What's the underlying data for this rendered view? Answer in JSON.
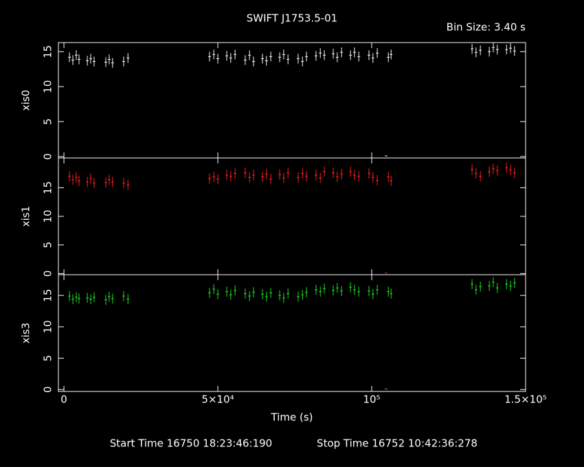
{
  "title": "SWIFT J1753.5-01",
  "annotation": "Bin Size: 3.40 s",
  "start_time": "Start Time 16750 18:23:46:190",
  "stop_time": "Stop Time 16752 10:42:36:278",
  "chart_data": [
    {
      "type": "scatter",
      "ylabel": "xis0",
      "color": "#ffffff",
      "x": [
        1800,
        2900,
        4000,
        4900,
        7600,
        8700,
        9800,
        13600,
        14700,
        15800,
        19400,
        20800,
        47300,
        48700,
        50000,
        52900,
        54200,
        55600,
        58900,
        60300,
        61600,
        64500,
        65800,
        67200,
        70100,
        71400,
        72800,
        76100,
        77500,
        78800,
        81900,
        83300,
        84600,
        87500,
        88800,
        90200,
        93100,
        94400,
        95800,
        99100,
        100400,
        101800,
        105400,
        106300,
        132600,
        133900,
        135300,
        138200,
        139500,
        140800,
        143800,
        145100,
        146400,
        104700
      ],
      "values": [
        14.2,
        13.8,
        14.5,
        13.9,
        13.7,
        14.0,
        13.6,
        13.5,
        13.9,
        13.4,
        13.6,
        14.1,
        14.3,
        14.6,
        14.0,
        14.4,
        14.1,
        14.6,
        13.8,
        14.5,
        13.6,
        14.0,
        13.7,
        14.3,
        14.2,
        14.6,
        13.9,
        14.0,
        13.6,
        14.3,
        14.4,
        14.8,
        14.5,
        14.7,
        14.2,
        14.9,
        14.5,
        14.9,
        14.3,
        14.5,
        14.1,
        14.8,
        14.2,
        14.6,
        15.4,
        14.9,
        15.2,
        15.0,
        15.6,
        15.3,
        15.3,
        15.5,
        15.1,
        0.1
      ],
      "errors": [
        0.7,
        0.7,
        0.7,
        0.7,
        0.7,
        0.7,
        0.7,
        0.7,
        0.7,
        0.7,
        0.7,
        0.7,
        0.7,
        0.7,
        0.7,
        0.7,
        0.7,
        0.7,
        0.7,
        0.7,
        0.7,
        0.7,
        0.7,
        0.7,
        0.7,
        0.7,
        0.7,
        0.7,
        0.7,
        0.7,
        0.7,
        0.7,
        0.7,
        0.7,
        0.7,
        0.7,
        0.7,
        0.7,
        0.7,
        0.7,
        0.7,
        0.7,
        0.7,
        0.7,
        0.7,
        0.7,
        0.7,
        0.7,
        0.7,
        0.7,
        0.7,
        0.7,
        0.7,
        0.0
      ],
      "ylim": [
        -0.2,
        16.3
      ],
      "yticks": [
        0,
        5,
        10,
        15
      ]
    },
    {
      "type": "scatter",
      "ylabel": "xis1",
      "color": "#ff2020",
      "x": [
        1800,
        2900,
        4000,
        4900,
        7600,
        8700,
        9800,
        13600,
        14700,
        15800,
        19400,
        20800,
        47300,
        48700,
        50000,
        52900,
        54200,
        55600,
        58900,
        60300,
        61600,
        64500,
        65800,
        67200,
        70100,
        71400,
        72800,
        76100,
        77500,
        78800,
        81900,
        83300,
        84600,
        87500,
        88800,
        90200,
        93100,
        94400,
        95800,
        99100,
        100400,
        101800,
        105400,
        106300,
        132600,
        133900,
        135300,
        138200,
        139500,
        140800,
        143800,
        145100,
        146400,
        104700
      ],
      "values": [
        17.0,
        16.4,
        16.8,
        16.2,
        16.0,
        16.6,
        15.8,
        15.9,
        16.4,
        16.0,
        15.8,
        15.5,
        16.6,
        16.9,
        16.5,
        17.2,
        17.0,
        17.5,
        17.6,
        16.8,
        17.2,
        16.9,
        17.4,
        16.5,
        17.3,
        16.7,
        17.6,
        16.8,
        17.5,
        17.0,
        17.2,
        16.7,
        17.8,
        17.6,
        16.9,
        17.4,
        17.8,
        17.2,
        17.0,
        17.5,
        16.8,
        16.3,
        16.9,
        16.2,
        18.2,
        17.5,
        17.0,
        17.8,
        18.3,
        18.0,
        18.5,
        18.1,
        17.6,
        0.1
      ],
      "errors": [
        0.9,
        0.9,
        0.9,
        0.9,
        0.9,
        0.9,
        0.9,
        0.9,
        0.9,
        0.9,
        0.9,
        0.9,
        0.9,
        0.9,
        0.9,
        0.9,
        0.9,
        0.9,
        0.9,
        0.9,
        0.9,
        0.9,
        0.9,
        0.9,
        0.9,
        0.9,
        0.9,
        0.9,
        0.9,
        0.9,
        0.9,
        0.9,
        0.9,
        0.9,
        0.9,
        0.9,
        0.9,
        0.9,
        0.9,
        0.9,
        0.9,
        0.9,
        0.9,
        0.9,
        0.9,
        0.9,
        0.9,
        0.9,
        0.9,
        0.9,
        0.9,
        0.9,
        0.9,
        0.0
      ],
      "ylim": [
        -0.2,
        20.2
      ],
      "yticks": [
        0,
        5,
        10,
        15
      ]
    },
    {
      "type": "scatter",
      "ylabel": "xis3",
      "xlabel": "Time (s)",
      "color": "#20e020",
      "x": [
        1800,
        2900,
        4000,
        4900,
        7600,
        8700,
        9800,
        13600,
        14700,
        15800,
        19400,
        20800,
        47300,
        48700,
        50000,
        52900,
        54200,
        55600,
        58900,
        60300,
        61600,
        64500,
        65800,
        67200,
        70100,
        71400,
        72800,
        76100,
        77500,
        78800,
        81900,
        83300,
        84600,
        87500,
        88800,
        90200,
        93100,
        94400,
        95800,
        99100,
        100400,
        101800,
        105400,
        106300,
        132600,
        133900,
        135300,
        138200,
        139500,
        140800,
        143800,
        145100,
        146400,
        104700
      ],
      "values": [
        14.9,
        14.4,
        14.7,
        14.5,
        14.6,
        14.4,
        14.7,
        14.3,
        14.8,
        14.5,
        14.9,
        14.4,
        15.4,
        16.0,
        15.2,
        15.6,
        15.1,
        15.8,
        15.3,
        14.9,
        15.5,
        15.2,
        14.8,
        15.4,
        15.0,
        14.6,
        15.3,
        14.8,
        15.1,
        15.5,
        15.9,
        15.6,
        16.1,
        15.8,
        16.2,
        15.7,
        16.3,
        15.9,
        15.6,
        15.7,
        15.2,
        15.9,
        15.6,
        15.3,
        16.8,
        15.9,
        16.4,
        16.5,
        17.1,
        16.2,
        16.8,
        16.5,
        17.0,
        0.1
      ],
      "errors": [
        0.8,
        0.8,
        0.8,
        0.8,
        0.8,
        0.8,
        0.8,
        0.8,
        0.8,
        0.8,
        0.8,
        0.8,
        0.8,
        0.8,
        0.8,
        0.8,
        0.8,
        0.8,
        0.8,
        0.8,
        0.8,
        0.8,
        0.8,
        0.8,
        0.8,
        0.8,
        0.8,
        0.8,
        0.8,
        0.8,
        0.8,
        0.8,
        0.8,
        0.8,
        0.8,
        0.8,
        0.8,
        0.8,
        0.8,
        0.8,
        0.8,
        0.8,
        0.8,
        0.8,
        0.8,
        0.8,
        0.8,
        0.8,
        0.8,
        0.8,
        0.8,
        0.8,
        0.8,
        0.0
      ],
      "ylim": [
        -0.3,
        18.3
      ],
      "yticks": [
        0,
        5,
        10,
        15
      ],
      "xlim": [
        -1800,
        150000
      ],
      "xticks": [
        0,
        {
          "value": 50000,
          "label": "5×10⁴"
        },
        {
          "value": 100000,
          "label": "10⁵"
        },
        {
          "value": 150000,
          "label": "1.5×10⁵"
        }
      ]
    }
  ]
}
